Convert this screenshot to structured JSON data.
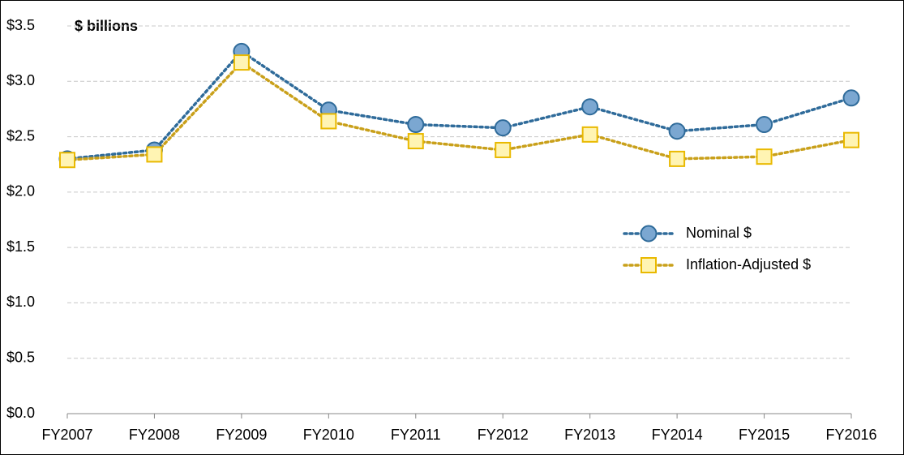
{
  "chart_data": {
    "type": "line",
    "annotation": "$ billions",
    "categories": [
      "FY2007",
      "FY2008",
      "FY2009",
      "FY2010",
      "FY2011",
      "FY2012",
      "FY2013",
      "FY2014",
      "FY2015",
      "FY2016"
    ],
    "series": [
      {
        "name": "Nominal $",
        "color": "#2f6b9a",
        "marker": "circle",
        "marker_fill": "#7ba7d1",
        "values": [
          2.3,
          2.38,
          3.27,
          2.74,
          2.61,
          2.58,
          2.77,
          2.55,
          2.61,
          2.85
        ]
      },
      {
        "name": "Inflation-Adjusted $",
        "color": "#c9a01a",
        "marker": "square",
        "marker_fill": "#fff4b3",
        "marker_stroke": "#e9b900",
        "values": [
          2.29,
          2.34,
          3.17,
          2.64,
          2.46,
          2.38,
          2.52,
          2.3,
          2.32,
          2.47
        ]
      }
    ],
    "ylim": [
      0,
      3.5
    ],
    "yticks": [
      {
        "value": 0,
        "label": "$0.0"
      },
      {
        "value": 0.5,
        "label": "$0.5"
      },
      {
        "value": 1,
        "label": "$1.0"
      },
      {
        "value": 1.5,
        "label": "$1.5"
      },
      {
        "value": 2,
        "label": "$2.0"
      },
      {
        "value": 2.5,
        "label": "$2.5"
      },
      {
        "value": 3,
        "label": "$3.0"
      },
      {
        "value": 3.5,
        "label": "$3.5"
      }
    ],
    "grid": true,
    "legend_position": "right"
  }
}
